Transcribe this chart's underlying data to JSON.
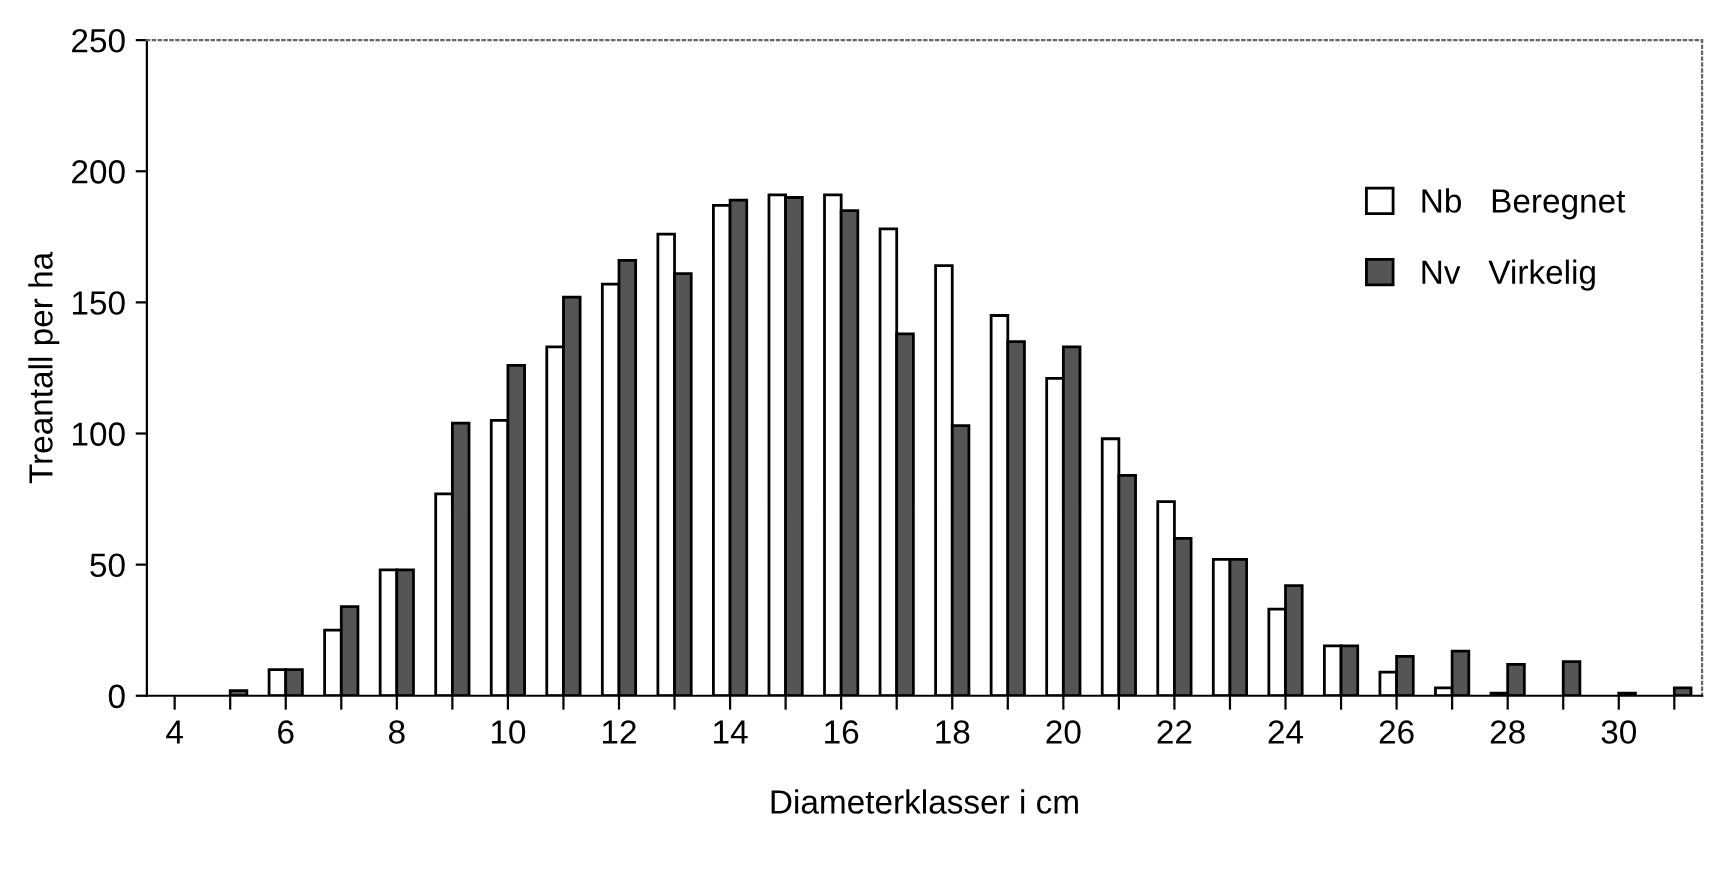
{
  "chart_data": {
    "type": "bar",
    "xlabel": "Diameterklasser i cm",
    "ylabel": "Treantall per ha",
    "categories": [
      "4",
      null,
      "6",
      null,
      "8",
      null,
      "10",
      null,
      "12",
      null,
      "14",
      null,
      "16",
      null,
      "18",
      null,
      "20",
      null,
      "22",
      null,
      "24",
      null,
      "26",
      null,
      "28",
      null,
      "30",
      null
    ],
    "series": [
      {
        "name": "Nb   Beregnet",
        "color": "#ffffff",
        "values": [
          0,
          0,
          10,
          25,
          48,
          77,
          105,
          133,
          157,
          176,
          187,
          191,
          191,
          178,
          164,
          145,
          121,
          98,
          74,
          52,
          33,
          19,
          9,
          3,
          1,
          0,
          0,
          0
        ]
      },
      {
        "name": "Nv   Virkelig",
        "color": "#555555",
        "values": [
          0,
          2,
          10,
          34,
          48,
          104,
          126,
          152,
          166,
          161,
          189,
          190,
          185,
          138,
          103,
          135,
          133,
          84,
          60,
          52,
          42,
          19,
          15,
          17,
          12,
          13,
          1,
          3
        ]
      }
    ],
    "ylim": [
      0,
      250
    ],
    "yticks": [
      0,
      50,
      100,
      150,
      200,
      250
    ],
    "grid": false,
    "legend": "top right"
  }
}
